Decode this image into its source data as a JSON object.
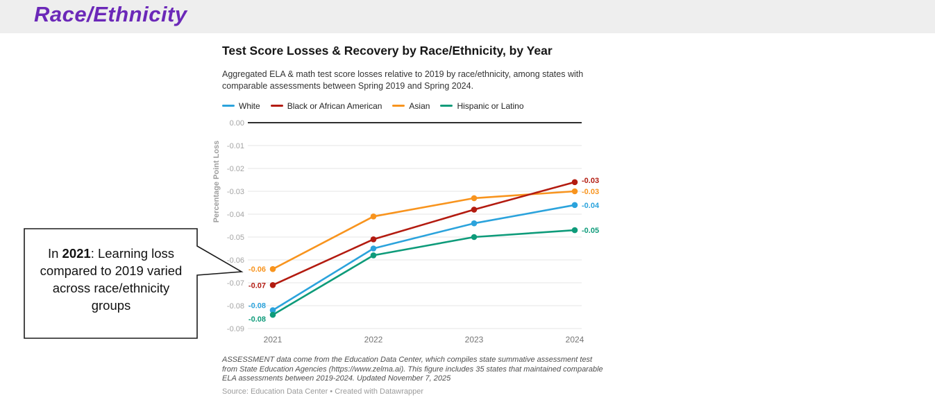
{
  "page": {
    "banner_title": "Race/Ethnicity"
  },
  "callout": {
    "prefix": "In ",
    "bold": "2021",
    "suffix": ": Learning loss compared to 2019 varied across race/ethnicity groups"
  },
  "chart_data": {
    "type": "line",
    "title": "Test Score Losses & Recovery by Race/Ethnicity, by Year",
    "subtitle": "Aggregated ELA & math test score losses relative to 2019 by race/ethnicity, among states with comparable assessments between Spring 2019 and Spring 2024.",
    "ylabel": "Percentage Point Loss",
    "categories": [
      "2021",
      "2022",
      "2023",
      "2024"
    ],
    "ylim": [
      -0.09,
      0
    ],
    "y_tick_step": 0.01,
    "grid": true,
    "legend_position": "top",
    "series": [
      {
        "name": "White",
        "color": "#2ba3dc",
        "values": [
          -0.082,
          -0.055,
          -0.044,
          -0.036
        ],
        "start_label": "-0.08",
        "end_label": "-0.04",
        "start_dy": -7,
        "end_dy": 0
      },
      {
        "name": "Black or African American",
        "color": "#b31b10",
        "values": [
          -0.071,
          -0.051,
          -0.038,
          -0.026
        ],
        "start_label": "-0.07",
        "end_label": "-0.03",
        "start_dy": 0,
        "end_dy": -3
      },
      {
        "name": "Asian",
        "color": "#f8941e",
        "values": [
          -0.064,
          -0.041,
          -0.033,
          -0.03
        ],
        "start_label": "-0.06",
        "end_label": "-0.03",
        "start_dy": 0,
        "end_dy": 0
      },
      {
        "name": "Hispanic or Latino",
        "color": "#0e9b7a",
        "values": [
          -0.084,
          -0.058,
          -0.05,
          -0.047
        ],
        "start_label": "-0.08",
        "end_label": "-0.05",
        "start_dy": 6,
        "end_dy": 0
      }
    ],
    "notes": "ASSESSMENT data come from the Education Data Center, which compiles state summative assessment test from State Education Agencies (https://www.zelma.ai). This figure includes 35 states that maintained comparable ELA assessments between 2019-2024. Updated November 7, 2025",
    "source": "Source: Education Data Center • Created with Datawrapper",
    "colors": {
      "zero_line": "#2e2e2e",
      "grid_line": "#e4e4e4",
      "y_tick_label": "#a3a3a3",
      "x_tick_label": "#757575",
      "axis_title": "#9e9e9e"
    }
  }
}
